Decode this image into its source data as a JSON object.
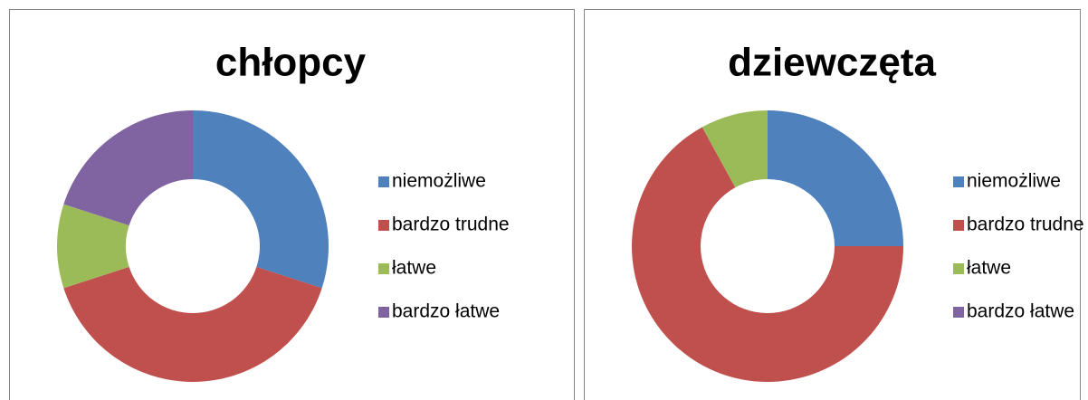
{
  "chart_data": [
    {
      "type": "donut",
      "title": "chłopcy",
      "categories": [
        "niemożliwe",
        "bardzo trudne",
        "łatwe",
        "bardzo łatwe"
      ],
      "values": [
        30,
        40,
        10,
        20
      ],
      "colors": [
        "#4f81bd",
        "#c0504d",
        "#9bbb59",
        "#8064a2"
      ],
      "legend": "right"
    },
    {
      "type": "donut",
      "title": "dziewczęta",
      "categories": [
        "niemożliwe",
        "bardzo trudne",
        "łatwe",
        "bardzo łatwe"
      ],
      "values": [
        25,
        67,
        8,
        0
      ],
      "colors": [
        "#4f81bd",
        "#c0504d",
        "#9bbb59",
        "#8064a2"
      ],
      "legend": "right"
    }
  ]
}
